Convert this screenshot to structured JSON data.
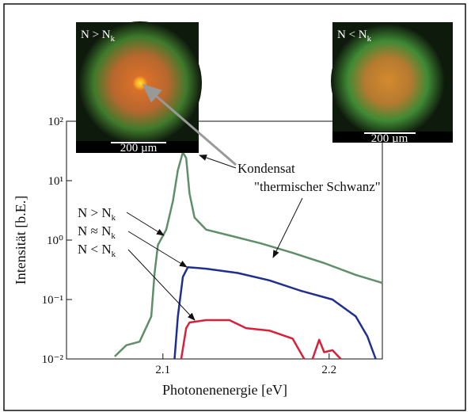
{
  "chart_data": {
    "type": "line",
    "x_label": "Photonenenergie [eV]",
    "y_label": "Intensität [b.E.]",
    "log_y": true,
    "xlim": [
      2.042,
      2.232
    ],
    "ylim": [
      0.01,
      100
    ],
    "xticks": [
      2.1,
      2.2
    ],
    "yticks": [
      {
        "value": 0.01,
        "label": "10⁻²"
      },
      {
        "value": 0.1,
        "label": "10⁻¹"
      },
      {
        "value": 1,
        "label": "10⁰"
      },
      {
        "value": 10,
        "label": "10¹"
      },
      {
        "value": 100,
        "label": "10²"
      }
    ],
    "series": [
      {
        "label": {
          "text": "N > N",
          "sub": "k"
        },
        "color": "#5e8f68",
        "x": [
          2.071,
          2.078,
          2.086,
          2.093,
          2.095,
          2.097,
          2.102,
          2.106,
          2.109,
          2.112,
          2.114,
          2.116,
          2.119,
          2.126,
          2.14,
          2.159,
          2.178,
          2.197,
          2.216,
          2.232
        ],
        "values": [
          0.011,
          0.017,
          0.0195,
          0.052,
          0.28,
          0.83,
          1.5,
          4.5,
          15,
          30,
          24,
          6.1,
          2.4,
          1.5,
          1.2,
          0.88,
          0.61,
          0.41,
          0.26,
          0.19
        ]
      },
      {
        "label": {
          "text": "N ≈ N",
          "sub": "k"
        },
        "color": "#1f2f8f",
        "x": [
          2.107,
          2.109,
          2.112,
          2.115,
          2.126,
          2.145,
          2.164,
          2.183,
          2.202,
          2.216,
          2.223,
          2.228
        ],
        "values": [
          0.01,
          0.052,
          0.24,
          0.35,
          0.33,
          0.28,
          0.21,
          0.14,
          0.1,
          0.052,
          0.024,
          0.01
        ]
      },
      {
        "label": {
          "text": "N < N",
          "sub": "k"
        },
        "color": "#d8203a",
        "x": [
          2.111,
          2.114,
          2.116,
          2.126,
          2.14,
          2.15,
          2.164,
          2.178,
          2.185,
          2.188,
          2.19,
          2.194,
          2.197,
          2.202,
          2.207
        ],
        "values": [
          0.01,
          0.033,
          0.041,
          0.045,
          0.045,
          0.033,
          0.03,
          0.022,
          0.01,
          null,
          0.01,
          0.021,
          0.013,
          0.014,
          0.01
        ]
      }
    ],
    "annotations": [
      "Kondensat",
      "\"thermischer Schwanz\""
    ],
    "insets": [
      {
        "label": {
          "text": "N > N",
          "sub": "k"
        },
        "scale": "200 µm"
      },
      {
        "label": {
          "text": "N < N",
          "sub": "k"
        },
        "scale": "200 µm"
      }
    ]
  }
}
